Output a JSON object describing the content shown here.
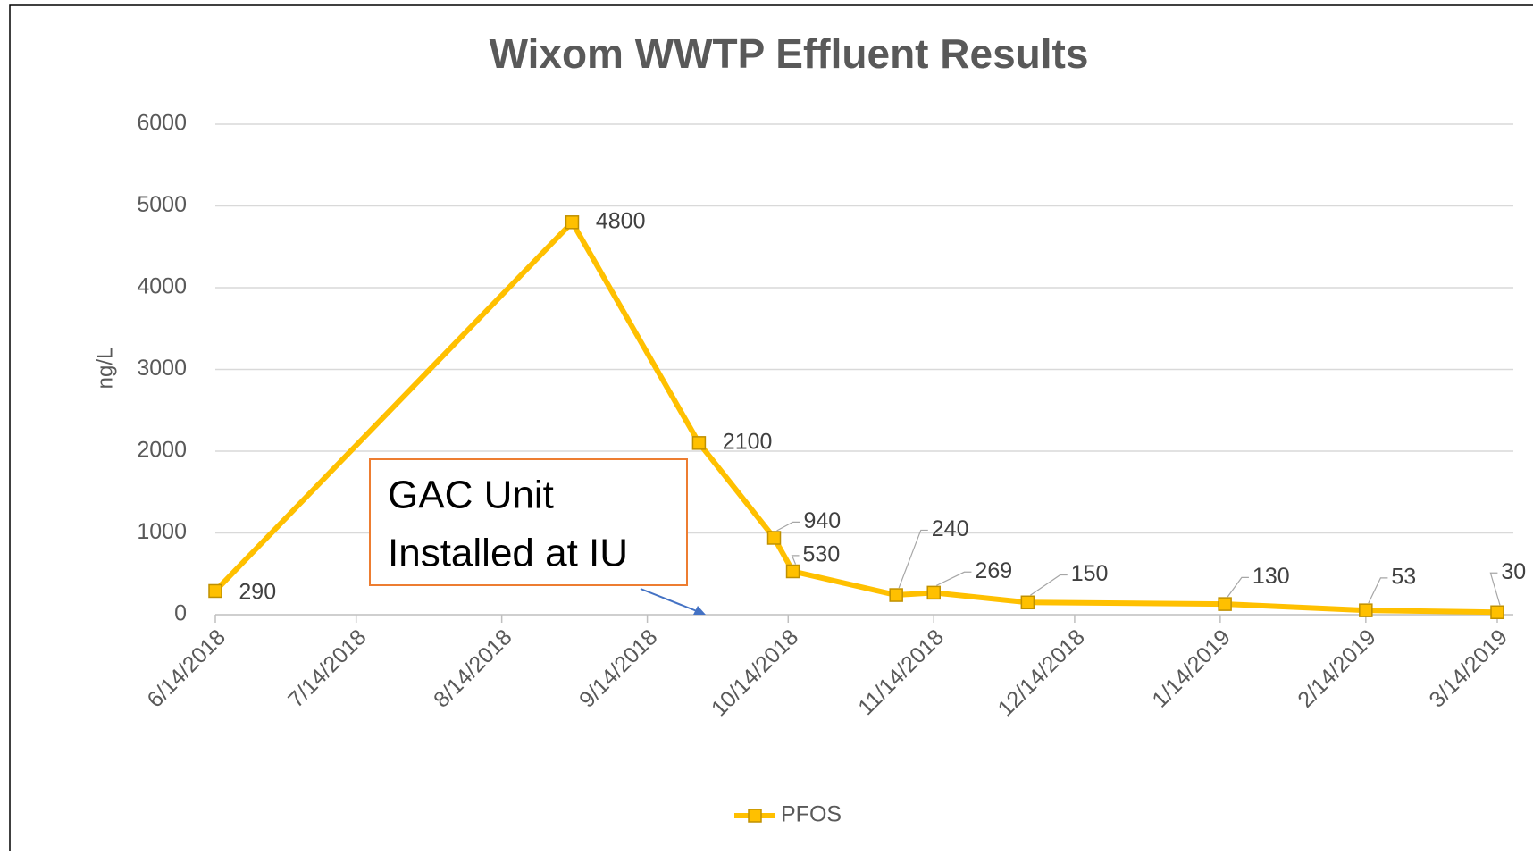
{
  "chart_data": {
    "type": "line",
    "title": "Wixom WWTP Effluent Results",
    "y_label": "ng/L",
    "x": [
      "2018-06-14",
      "2018-08-29",
      "2018-09-25",
      "2018-10-11",
      "2018-10-15",
      "2018-11-06",
      "2018-11-14",
      "2018-12-04",
      "2019-01-15",
      "2019-02-14",
      "2019-03-14"
    ],
    "series": [
      {
        "name": "PFOS",
        "color": "#FFC000",
        "values": [
          290,
          4800,
          2100,
          940,
          530,
          240,
          269,
          150,
          130,
          53,
          30
        ]
      }
    ],
    "xlim": [
      "2018-06-14",
      "2019-03-14"
    ],
    "xticks": [
      {
        "value": "2018-06-14",
        "label": "6/14/2018"
      },
      {
        "value": "2018-07-14",
        "label": "7/14/2018"
      },
      {
        "value": "2018-08-14",
        "label": "8/14/2018"
      },
      {
        "value": "2018-09-14",
        "label": "9/14/2018"
      },
      {
        "value": "2018-10-14",
        "label": "10/14/2018"
      },
      {
        "value": "2018-11-14",
        "label": "11/14/2018"
      },
      {
        "value": "2018-12-14",
        "label": "12/14/2018"
      },
      {
        "value": "2019-01-14",
        "label": "1/14/2019"
      },
      {
        "value": "2019-02-14",
        "label": "2/14/2019"
      },
      {
        "value": "2019-03-14",
        "label": "3/14/2019"
      }
    ],
    "ylim": [
      0,
      6000
    ],
    "yticks": [
      0,
      1000,
      2000,
      3000,
      4000,
      5000,
      6000
    ],
    "grid": true,
    "legend": "bottom",
    "annotation": {
      "lines": [
        "GAC Unit",
        "Installed at IU"
      ]
    }
  }
}
